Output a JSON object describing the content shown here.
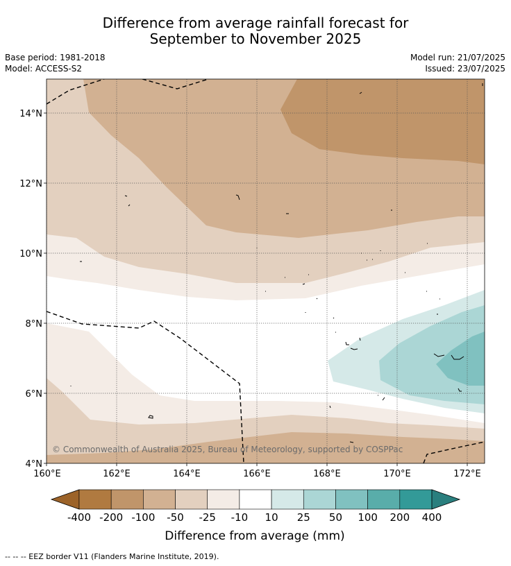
{
  "title_line1": "Difference from average rainfall forecast for",
  "title_line2": "September to November 2025",
  "meta": {
    "base_period": "Base period: 1981-2018",
    "model": "Model: ACCESS-S2",
    "model_run": "Model run: 21/07/2025",
    "issued": "Issued: 23/07/2025"
  },
  "map": {
    "lat_labels": [
      "14°N",
      "12°N",
      "10°N",
      "8°N",
      "6°N",
      "4°N"
    ],
    "lon_labels": [
      "160°E",
      "162°E",
      "164°E",
      "166°E",
      "168°E",
      "170°E",
      "172°E"
    ],
    "copyright": "© Commonwealth of Australia 2025, Bureau of Meteorology, supported by COSPPac"
  },
  "colorbar": {
    "ticks": [
      "-400",
      "-200",
      "-100",
      "-50",
      "-25",
      "-10",
      "10",
      "25",
      "50",
      "100",
      "200",
      "400"
    ],
    "colors": [
      "#9c6329",
      "#b07a40",
      "#c0956a",
      "#d2b192",
      "#e3d0bf",
      "#f4ece6",
      "#ffffff",
      "#d5e9e8",
      "#abd6d5",
      "#80c1c0",
      "#59adaa",
      "#339a98",
      "#2a7f7e"
    ],
    "label": "Difference from average (mm)"
  },
  "footnote": "--  --  -- EEZ border V11 (Flanders Marine Institute, 2019)."
}
